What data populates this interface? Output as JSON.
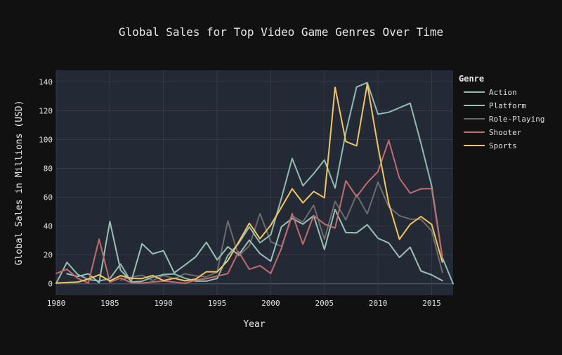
{
  "chart_data": {
    "type": "line",
    "title": "Global Sales for Top Video Game Genres Over Time",
    "xlabel": "Year",
    "ylabel": "Global Sales in Millions (USD)",
    "xlim": [
      1980,
      2017
    ],
    "ylim": [
      -8,
      148
    ],
    "x_ticks": [
      1980,
      1985,
      1990,
      1995,
      2000,
      2005,
      2010,
      2015
    ],
    "y_ticks": [
      0,
      20,
      40,
      60,
      80,
      100,
      120,
      140
    ],
    "grid": true,
    "legend": {
      "title": "Genre",
      "position": "top-right"
    },
    "x": [
      1980,
      1981,
      1982,
      1983,
      1984,
      1985,
      1986,
      1987,
      1988,
      1989,
      1990,
      1991,
      1992,
      1993,
      1994,
      1995,
      1996,
      1997,
      1998,
      1999,
      2000,
      2001,
      2002,
      2003,
      2004,
      2005,
      2006,
      2007,
      2008,
      2009,
      2010,
      2011,
      2012,
      2013,
      2014,
      2015,
      2016,
      2017
    ],
    "series": [
      {
        "name": "Action",
        "color": "#8fbcaf",
        "values": [
          0.3,
          14.8,
          6.5,
          2.9,
          1.9,
          3.5,
          13.7,
          1.1,
          1.7,
          4.6,
          6.4,
          6.8,
          3.8,
          1.8,
          1.8,
          3.6,
          19.6,
          27.9,
          39.4,
          28.4,
          33.9,
          59.4,
          86.8,
          67.9,
          76.3,
          85.8,
          66.3,
          104.9,
          136.4,
          139.4,
          117.6,
          118.9,
          122.0,
          125.2,
          97.4,
          67.8,
          18.1,
          0.0
        ]
      },
      {
        "name": "Platform",
        "color": "#98c1b4",
        "values": [
          null,
          6.9,
          5.0,
          6.9,
          0.7,
          43.2,
          9.4,
          1.7,
          27.7,
          20.7,
          22.9,
          7.6,
          12.9,
          18.6,
          28.7,
          16.5,
          25.6,
          20.0,
          30.2,
          20.9,
          15.6,
          39.6,
          45.3,
          41.3,
          47.2,
          23.8,
          51.5,
          35.5,
          35.3,
          40.9,
          31.5,
          28.2,
          18.3,
          25.3,
          8.8,
          6.1,
          2.1,
          null
        ]
      },
      {
        "name": "Role-Playing",
        "color": "#6b6b6b",
        "values": [
          null,
          null,
          null,
          null,
          null,
          null,
          2.5,
          4.6,
          5.9,
          2.2,
          5.8,
          3.4,
          6.9,
          5.4,
          4.7,
          8.1,
          43.6,
          19.3,
          26.2,
          48.6,
          29.1,
          25.9,
          46.9,
          42.8,
          54.5,
          30.7,
          57.2,
          44.3,
          61.8,
          48.5,
          70.5,
          53.3,
          47.2,
          44.8,
          44.7,
          36.7,
          7.8,
          null
        ]
      },
      {
        "name": "Shooter",
        "color": "#c16c6c",
        "values": [
          7.1,
          10.0,
          3.8,
          0.5,
          30.9,
          1.0,
          3.9,
          0.7,
          0.5,
          1.2,
          1.9,
          1.1,
          0.3,
          2.6,
          3.5,
          5.2,
          7.0,
          22.2,
          10.0,
          12.5,
          7.1,
          24.6,
          48.6,
          27.4,
          47.3,
          41.4,
          38.6,
          71.4,
          60.3,
          70.1,
          77.8,
          99.4,
          73.1,
          62.8,
          65.8,
          66.0,
          18.2,
          null
        ]
      },
      {
        "name": "Sports",
        "color": "#f2c562",
        "values": [
          0.5,
          0.8,
          1.1,
          3.2,
          6.2,
          1.9,
          5.6,
          3.7,
          3.6,
          5.7,
          2.2,
          3.8,
          2.0,
          3.2,
          8.3,
          8.3,
          16.0,
          28.8,
          41.9,
          31.2,
          40.6,
          53.1,
          65.8,
          56.1,
          64.0,
          59.6,
          136.2,
          98.6,
          95.6,
          138.5,
          95.0,
          55.7,
          30.8,
          41.2,
          46.6,
          41.1,
          15.0,
          null
        ]
      }
    ]
  }
}
